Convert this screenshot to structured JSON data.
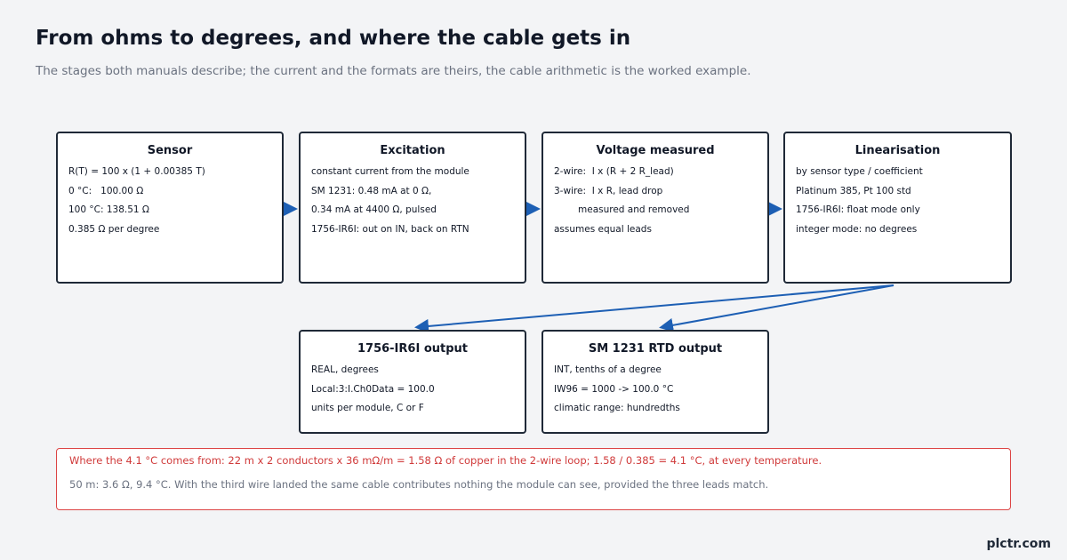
{
  "header": {
    "title": "From ohms to degrees, and where the cable gets in",
    "subtitle": "The stages both manuals describe; the current and the formats are theirs, the cable arithmetic is the worked example."
  },
  "nodes": [
    {
      "title": "Sensor",
      "lines": [
        "R(T) = 100 x (1 + 0.00385 T)",
        "0 °C:   100.00 Ω",
        "100 °C: 138.51 Ω",
        "0.385 Ω per degree"
      ]
    },
    {
      "title": "Excitation",
      "lines": [
        "constant current from the module",
        "SM 1231: 0.48 mA at 0 Ω,",
        "0.34 mA at 4400 Ω, pulsed",
        "1756-IR6I: out on IN, back on RTN"
      ]
    },
    {
      "title": "Voltage measured",
      "lines": [
        "2-wire:  I x (R + 2 R_lead)",
        "3-wire:  I x R, lead drop",
        "measured and removed",
        "assumes equal leads"
      ]
    },
    {
      "title": "Linearisation",
      "lines": [
        "by sensor type / coefficient",
        "Platinum 385, Pt 100 std",
        "1756-IR6I: float mode only",
        "integer mode: no degrees"
      ]
    },
    {
      "title": "1756-IR6I output",
      "lines": [
        "REAL, degrees",
        "Local:3:I.Ch0Data = 100.0",
        "units per module, C or F"
      ]
    },
    {
      "title": "SM 1231 RTD output",
      "lines": [
        "INT, tenths of a degree",
        "IW96 = 1000 -> 100.0 °C",
        "climatic range: hundredths"
      ]
    }
  ],
  "note": {
    "highlight": "Where the 4.1 °C comes from: 22 m x 2 conductors x 36 mΩ/m = 1.58 Ω of copper in the 2-wire loop; 1.58 / 0.385 = 4.1 °C, at every temperature.",
    "text": "50 m: 3.6 Ω, 9.4 °C. With the third wire landed the same cable contributes nothing the module can see, provided the three leads match."
  },
  "brand": "plctr.com"
}
